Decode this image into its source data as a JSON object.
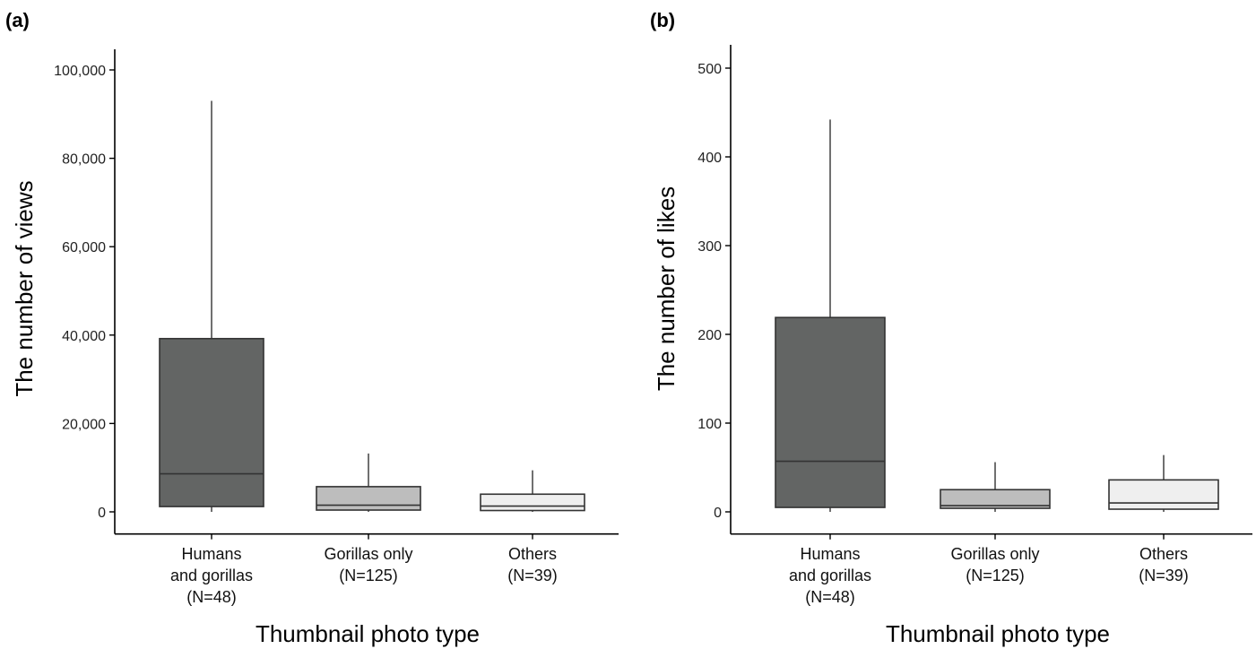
{
  "chart_data": [
    {
      "type": "box",
      "panel_label": "(a)",
      "xlabel": "Thumbnail photo type",
      "ylabel": "The number of views",
      "ylim": [
        -5000,
        105000
      ],
      "yticks": [
        0,
        20000,
        40000,
        60000,
        80000,
        100000
      ],
      "ytick_labels": [
        "0",
        "20,000",
        "40,000",
        "60,000",
        "80,000",
        "100,000"
      ],
      "categories": [
        [
          "Humans",
          "and gorillas",
          "(N=48)"
        ],
        [
          "Gorillas only",
          "(N=125)"
        ],
        [
          "Others",
          "(N=39)"
        ]
      ],
      "boxes": [
        {
          "min": 0,
          "q1": 1200,
          "median": 8600,
          "q3": 39200,
          "max": 93000,
          "fill": "#636564"
        },
        {
          "min": 0,
          "q1": 400,
          "median": 1500,
          "q3": 5700,
          "max": 13200,
          "fill": "#bdbdbd"
        },
        {
          "min": 0,
          "q1": 300,
          "median": 1300,
          "q3": 4000,
          "max": 9400,
          "fill": "#efefef"
        }
      ]
    },
    {
      "type": "box",
      "panel_label": "(b)",
      "xlabel": "Thumbnail photo type",
      "ylabel": "The number of likes",
      "ylim": [
        -25,
        525
      ],
      "yticks": [
        0,
        100,
        200,
        300,
        400,
        500
      ],
      "ytick_labels": [
        "0",
        "100",
        "200",
        "300",
        "400",
        "500"
      ],
      "categories": [
        [
          "Humans",
          "and gorillas",
          "(N=48)"
        ],
        [
          "Gorillas only",
          "(N=125)"
        ],
        [
          "Others",
          "(N=39)"
        ]
      ],
      "boxes": [
        {
          "min": 0,
          "q1": 5,
          "median": 57,
          "q3": 219,
          "max": 442,
          "fill": "#636564"
        },
        {
          "min": 0,
          "q1": 4,
          "median": 7,
          "q3": 25,
          "max": 56,
          "fill": "#bdbdbd"
        },
        {
          "min": 0,
          "q1": 3,
          "median": 10,
          "q3": 36,
          "max": 64,
          "fill": "#efefef"
        }
      ]
    }
  ]
}
